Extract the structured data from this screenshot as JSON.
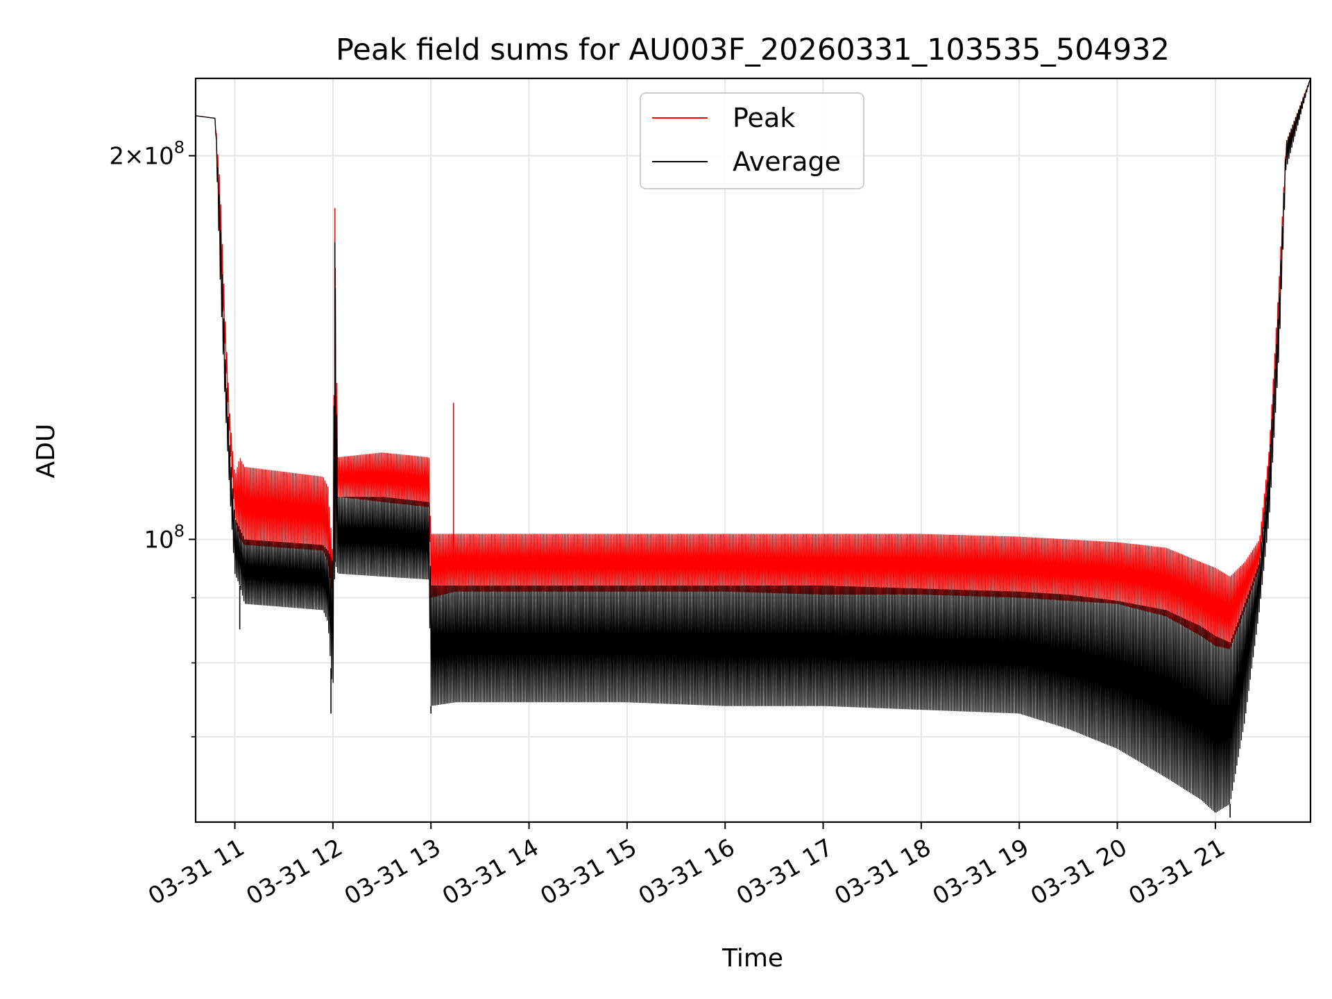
{
  "chart_data": {
    "type": "line",
    "title": "Peak field sums for AU003F_20260331_103535_504932",
    "xlabel": "Time",
    "ylabel": "ADU",
    "yscale": "log",
    "ylim": [
      60000000,
      230000000
    ],
    "xlim": [
      10.6,
      21.97
    ],
    "grid": true,
    "legend_position": "top-center",
    "x_ticks": [
      {
        "value": 11,
        "label": "03-31 11"
      },
      {
        "value": 12,
        "label": "03-31 12"
      },
      {
        "value": 13,
        "label": "03-31 13"
      },
      {
        "value": 14,
        "label": "03-31 14"
      },
      {
        "value": 15,
        "label": "03-31 15"
      },
      {
        "value": 16,
        "label": "03-31 16"
      },
      {
        "value": 17,
        "label": "03-31 17"
      },
      {
        "value": 18,
        "label": "03-31 18"
      },
      {
        "value": 19,
        "label": "03-31 19"
      },
      {
        "value": 20,
        "label": "03-31 20"
      },
      {
        "value": 21,
        "label": "03-31 21"
      }
    ],
    "y_ticks_major": [
      {
        "value": 100000000,
        "label_base": "10",
        "label_exp": "8"
      },
      {
        "value": 200000000,
        "label_base": "2×10",
        "label_exp": "8"
      }
    ],
    "y_ticks_minor": [
      70000000,
      80000000,
      90000000
    ],
    "series": [
      {
        "name": "Peak",
        "color": "#ff0000",
        "envelope_x": [
          10.6,
          10.8,
          10.85,
          10.9,
          10.95,
          11.0,
          11.05,
          11.1,
          11.5,
          11.9,
          11.95,
          12.0,
          12.02,
          12.05,
          12.5,
          12.98,
          13.0,
          13.25,
          14.0,
          15.0,
          16.0,
          17.0,
          18.0,
          19.0,
          19.5,
          20.0,
          20.5,
          20.85,
          21.0,
          21.15,
          21.3,
          21.45,
          21.55,
          21.65,
          21.72,
          21.97
        ],
        "upper": [
          215000000,
          214000000,
          190000000,
          150000000,
          125000000,
          112000000,
          116000000,
          114000000,
          113000000,
          112000000,
          110000000,
          97000000,
          175000000,
          116000000,
          117000000,
          116000000,
          101000000,
          101000000,
          101000000,
          101000000,
          101000000,
          101000000,
          101000000,
          100500000,
          100000000,
          99500000,
          98500000,
          96000000,
          95000000,
          93500000,
          96000000,
          100000000,
          118000000,
          160000000,
          205000000,
          230000000
        ],
        "lower": [
          215000000,
          214000000,
          170000000,
          140000000,
          118000000,
          104000000,
          100000000,
          99000000,
          98500000,
          98000000,
          96000000,
          90000000,
          105000000,
          108000000,
          107000000,
          106000000,
          90000000,
          91000000,
          91000000,
          91000000,
          91000000,
          90500000,
          90500000,
          90000000,
          89500000,
          89000000,
          87000000,
          84000000,
          82500000,
          82000000,
          88000000,
          95000000,
          112000000,
          150000000,
          200000000,
          230000000
        ],
        "spikes": [
          {
            "x": 12.02,
            "value": 182000000
          },
          {
            "x": 13.23,
            "value": 128000000
          }
        ]
      },
      {
        "name": "Average",
        "color": "#000000",
        "envelope_x": [
          10.6,
          10.8,
          10.85,
          10.9,
          10.95,
          11.0,
          11.05,
          11.1,
          11.5,
          11.9,
          11.95,
          12.0,
          12.02,
          12.05,
          12.5,
          12.98,
          13.0,
          13.25,
          14.0,
          15.0,
          16.0,
          17.0,
          18.0,
          19.0,
          19.5,
          20.0,
          20.5,
          20.85,
          21.0,
          21.15,
          21.3,
          21.45,
          21.55,
          21.65,
          21.72,
          21.97
        ],
        "upper": [
          215000000,
          214000000,
          182000000,
          140000000,
          118000000,
          104000000,
          102000000,
          100000000,
          99500000,
          99000000,
          98000000,
          96000000,
          170000000,
          108000000,
          108000000,
          107000000,
          92000000,
          92000000,
          92000000,
          92000000,
          92000000,
          92000000,
          91500000,
          91000000,
          90500000,
          89500000,
          88000000,
          85500000,
          84000000,
          83000000,
          89000000,
          96000000,
          115000000,
          155000000,
          205000000,
          230000000
        ],
        "lower": [
          215000000,
          214000000,
          160000000,
          128000000,
          108000000,
          94000000,
          92000000,
          89000000,
          88500000,
          88000000,
          86000000,
          75000000,
          96000000,
          94000000,
          93500000,
          93000000,
          74000000,
          74500000,
          74500000,
          74500000,
          74000000,
          74000000,
          73500000,
          73000000,
          71000000,
          68500000,
          65000000,
          62500000,
          61000000,
          62000000,
          72000000,
          88000000,
          104000000,
          140000000,
          195000000,
          230000000
        ],
        "spikes": [
          {
            "x": 11.05,
            "value": 85000000
          },
          {
            "x": 11.98,
            "value": 73000000
          },
          {
            "x": 12.02,
            "value": 171000000
          },
          {
            "x": 13.0,
            "value": 73000000
          },
          {
            "x": 21.15,
            "value": 60500000
          }
        ]
      }
    ]
  }
}
